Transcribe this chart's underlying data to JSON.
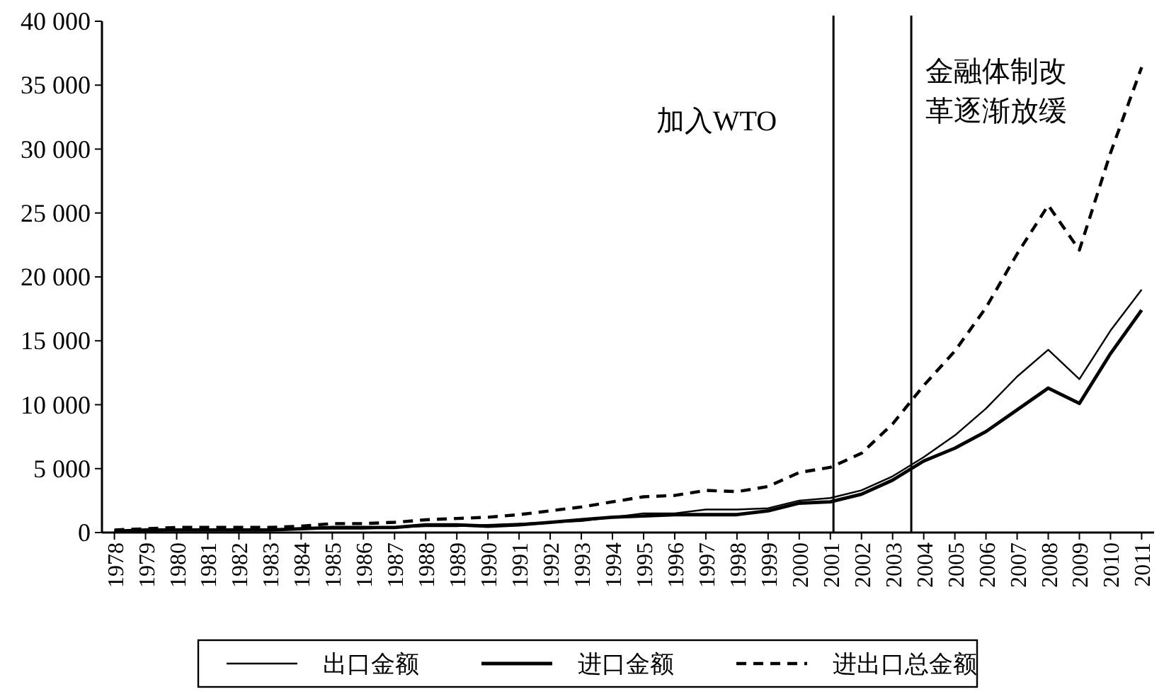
{
  "chart_data": {
    "type": "line",
    "x": [
      1978,
      1979,
      1980,
      1981,
      1982,
      1983,
      1984,
      1985,
      1986,
      1987,
      1988,
      1989,
      1990,
      1991,
      1992,
      1993,
      1994,
      1995,
      1996,
      1997,
      1998,
      1999,
      2000,
      2001,
      2002,
      2003,
      2004,
      2005,
      2006,
      2007,
      2008,
      2009,
      2010,
      2011
    ],
    "series": [
      {
        "name": "出口金额",
        "color": "#000000",
        "line_style": "solid",
        "values": [
          100,
          100,
          200,
          200,
          200,
          200,
          300,
          300,
          300,
          400,
          500,
          500,
          600,
          700,
          800,
          900,
          1200,
          1500,
          1500,
          1800,
          1800,
          1900,
          2500,
          2700,
          3300,
          4400,
          5900,
          7600,
          9700,
          12200,
          14300,
          12000,
          15800,
          19000
        ]
      },
      {
        "name": "进口金额",
        "color": "#000000",
        "line_style": "solid",
        "values": [
          100,
          200,
          200,
          200,
          200,
          200,
          300,
          400,
          400,
          400,
          600,
          600,
          500,
          600,
          800,
          1000,
          1200,
          1300,
          1400,
          1400,
          1400,
          1700,
          2300,
          2400,
          3000,
          4100,
          5600,
          6600,
          7900,
          9600,
          11300,
          10100,
          14000,
          17400
        ]
      },
      {
        "name": "进出口总金额",
        "color": "#000000",
        "line_style": "dashed",
        "values": [
          200,
          300,
          400,
          400,
          400,
          400,
          500,
          700,
          700,
          800,
          1000,
          1100,
          1200,
          1400,
          1700,
          2000,
          2400,
          2800,
          2900,
          3300,
          3200,
          3600,
          4700,
          5100,
          6200,
          8500,
          11500,
          14200,
          17600,
          21800,
          25600,
          22100,
          29700,
          36400
        ]
      }
    ],
    "xlim": [
      1977.6,
      2011.4
    ],
    "xticks": [
      1978,
      1979,
      1980,
      1981,
      1982,
      1983,
      1984,
      1985,
      1986,
      1987,
      1988,
      1989,
      1990,
      1991,
      1992,
      1993,
      1994,
      1995,
      1996,
      1997,
      1998,
      1999,
      2000,
      2001,
      2002,
      2003,
      2004,
      2005,
      2006,
      2007,
      2008,
      2009,
      2010,
      2011
    ],
    "ylim": [
      0,
      40000
    ],
    "yticks": [
      0,
      {
        "value": 5000,
        "label": "5 000"
      },
      {
        "value": 10000,
        "label": "10 000"
      },
      {
        "value": 15000,
        "label": "15 000"
      },
      {
        "value": 20000,
        "label": "20 000"
      },
      {
        "value": 25000,
        "label": "25 000"
      },
      {
        "value": 30000,
        "label": "30 000"
      },
      {
        "value": 35000,
        "label": "35 000"
      },
      {
        "value": 40000,
        "label": "40 000"
      }
    ],
    "ref_lines": [
      {
        "axis": "x",
        "value": 2001.1,
        "label": "加入WTO"
      },
      {
        "axis": "x",
        "value": 2003.6,
        "label": "金融体制改革逐渐放缓"
      }
    ],
    "grid": false,
    "legend": "bottom",
    "marker": "none"
  }
}
